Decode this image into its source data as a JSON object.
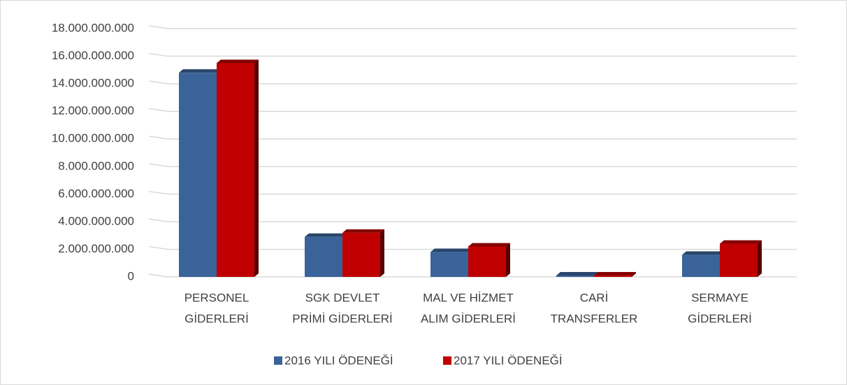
{
  "chart_data": {
    "type": "bar3d",
    "categories": [
      [
        "PERSONEL",
        "GİDERLERİ"
      ],
      [
        "SGK DEVLET",
        "PRİMİ GİDERLERİ"
      ],
      [
        "MAL VE HİZMET",
        "ALIM GİDERLERİ"
      ],
      [
        "CARİ",
        "TRANSFERLER"
      ],
      [
        "SERMAYE",
        "GİDERLERİ"
      ]
    ],
    "series": [
      {
        "name": "2016 YILI ÖDENEĞİ",
        "color": "#3a6399",
        "values": [
          14800000000,
          2900000000,
          1800000000,
          100000000,
          1600000000
        ]
      },
      {
        "name": "2017 YILI ÖDENEĞİ",
        "color": "#c00000",
        "values": [
          15500000000,
          3200000000,
          2200000000,
          100000000,
          2400000000
        ]
      }
    ],
    "ylim": [
      0,
      18000000000
    ],
    "yticks": [
      0,
      {
        "value": 2000000000,
        "label": "2.000.000.000"
      },
      {
        "value": 4000000000,
        "label": "4.000.000.000"
      },
      {
        "value": 6000000000,
        "label": "6.000.000.000"
      },
      {
        "value": 8000000000,
        "label": "8.000.000.000"
      },
      {
        "value": 10000000000,
        "label": "10.000.000.000"
      },
      {
        "value": 12000000000,
        "label": "12.000.000.000"
      },
      {
        "value": 14000000000,
        "label": "14.000.000.000"
      },
      {
        "value": 16000000000,
        "label": "16.000.000.000"
      },
      {
        "value": 18000000000,
        "label": "18.000.000.000"
      }
    ],
    "grid": true,
    "legend": "bottom"
  }
}
